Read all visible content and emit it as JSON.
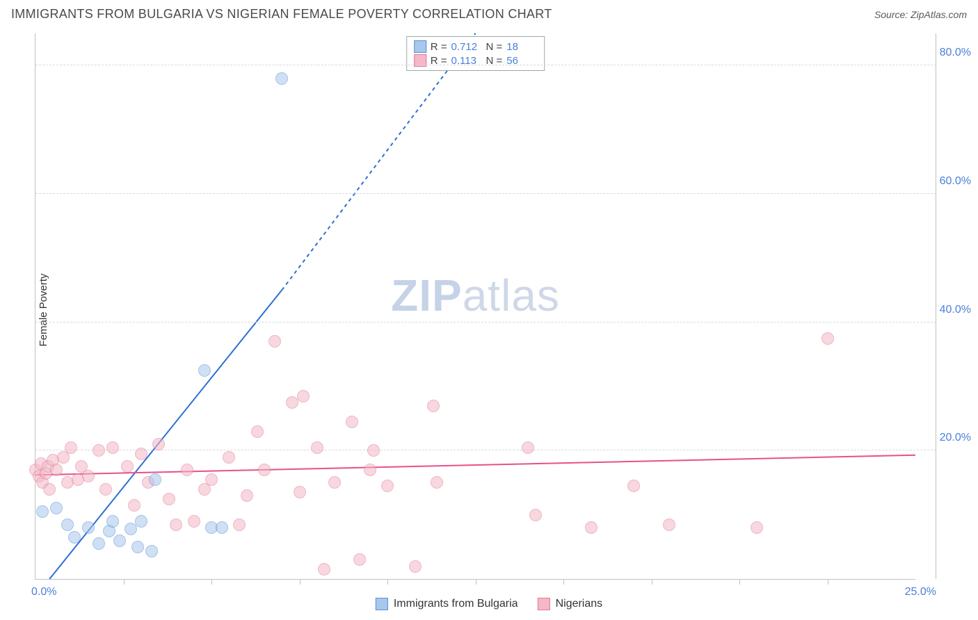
{
  "title": "IMMIGRANTS FROM BULGARIA VS NIGERIAN FEMALE POVERTY CORRELATION CHART",
  "source": "Source: ZipAtlas.com",
  "watermark": {
    "part1": "ZIP",
    "part2": "atlas"
  },
  "chart": {
    "type": "scatter",
    "ylabel": "Female Poverty",
    "xlim": [
      0,
      25
    ],
    "ylim": [
      0,
      85
    ],
    "x_origin_label": "0.0%",
    "x_max_label": "25.0%",
    "y_ticks": [
      20,
      40,
      60,
      80
    ],
    "y_tick_labels": [
      "20.0%",
      "40.0%",
      "60.0%",
      "80.0%"
    ],
    "x_minor_ticks": [
      2.5,
      5,
      7.5,
      10,
      12.5,
      15,
      17.5,
      20,
      22.5
    ],
    "background_color": "#ffffff",
    "grid_color": "#d8d8d8",
    "axis_color": "#c0c0c0",
    "point_radius": 9,
    "point_opacity": 0.55,
    "series": [
      {
        "name": "Immigrants from Bulgaria",
        "color_fill": "#a8c7ec",
        "color_stroke": "#5b8fd6",
        "R": "0.712",
        "N": "18",
        "trend": {
          "x1": 0.4,
          "y1": 0,
          "x2": 7.0,
          "y2": 45,
          "extend_x2": 12.5,
          "extend_y2": 85,
          "color": "#2d6fd4",
          "width": 2
        },
        "points": [
          [
            0.2,
            10.5
          ],
          [
            0.6,
            11.0
          ],
          [
            0.9,
            8.5
          ],
          [
            1.1,
            6.5
          ],
          [
            1.5,
            8.0
          ],
          [
            1.8,
            5.5
          ],
          [
            2.1,
            7.5
          ],
          [
            2.2,
            9.0
          ],
          [
            2.4,
            6.0
          ],
          [
            2.7,
            7.8
          ],
          [
            2.9,
            5.0
          ],
          [
            3.0,
            9.0
          ],
          [
            3.3,
            4.3
          ],
          [
            3.4,
            15.5
          ],
          [
            5.0,
            8.0
          ],
          [
            5.3,
            8.0
          ],
          [
            4.8,
            32.5
          ],
          [
            7.0,
            78.0
          ]
        ]
      },
      {
        "name": "Nigerians",
        "color_fill": "#f4b8c6",
        "color_stroke": "#e07a9a",
        "R": "0.113",
        "N": "56",
        "trend": {
          "x1": 0,
          "y1": 16.2,
          "x2": 25,
          "y2": 19.3,
          "color": "#e84f8a",
          "width": 2
        },
        "points": [
          [
            0.0,
            17.0
          ],
          [
            0.1,
            16.0
          ],
          [
            0.15,
            18.0
          ],
          [
            0.2,
            15.0
          ],
          [
            0.3,
            16.5
          ],
          [
            0.35,
            17.5
          ],
          [
            0.4,
            14.0
          ],
          [
            0.5,
            18.5
          ],
          [
            0.6,
            17.0
          ],
          [
            0.8,
            19.0
          ],
          [
            0.9,
            15.0
          ],
          [
            1.0,
            20.5
          ],
          [
            1.2,
            15.5
          ],
          [
            1.3,
            17.5
          ],
          [
            1.5,
            16.0
          ],
          [
            1.8,
            20.0
          ],
          [
            2.0,
            14.0
          ],
          [
            2.2,
            20.5
          ],
          [
            2.6,
            17.5
          ],
          [
            2.8,
            11.5
          ],
          [
            3.0,
            19.5
          ],
          [
            3.2,
            15.0
          ],
          [
            3.5,
            21.0
          ],
          [
            3.8,
            12.5
          ],
          [
            4.0,
            8.5
          ],
          [
            4.3,
            17.0
          ],
          [
            4.5,
            9.0
          ],
          [
            4.8,
            14.0
          ],
          [
            5.0,
            15.5
          ],
          [
            5.5,
            19.0
          ],
          [
            6.0,
            13.0
          ],
          [
            6.3,
            23.0
          ],
          [
            6.5,
            17.0
          ],
          [
            6.8,
            37.0
          ],
          [
            7.3,
            27.5
          ],
          [
            7.5,
            13.5
          ],
          [
            7.6,
            28.5
          ],
          [
            8.0,
            20.5
          ],
          [
            8.2,
            1.5
          ],
          [
            8.5,
            15.0
          ],
          [
            9.0,
            24.5
          ],
          [
            9.2,
            3.0
          ],
          [
            9.5,
            17.0
          ],
          [
            9.6,
            20.0
          ],
          [
            10.0,
            14.5
          ],
          [
            10.8,
            2.0
          ],
          [
            11.3,
            27.0
          ],
          [
            11.4,
            15.0
          ],
          [
            14.0,
            20.5
          ],
          [
            14.2,
            10.0
          ],
          [
            15.8,
            8.0
          ],
          [
            17.0,
            14.5
          ],
          [
            18.0,
            8.5
          ],
          [
            20.5,
            8.0
          ],
          [
            22.5,
            37.5
          ],
          [
            5.8,
            8.5
          ]
        ]
      }
    ],
    "legend_top_labels": {
      "R": "R =",
      "N": "N ="
    }
  }
}
